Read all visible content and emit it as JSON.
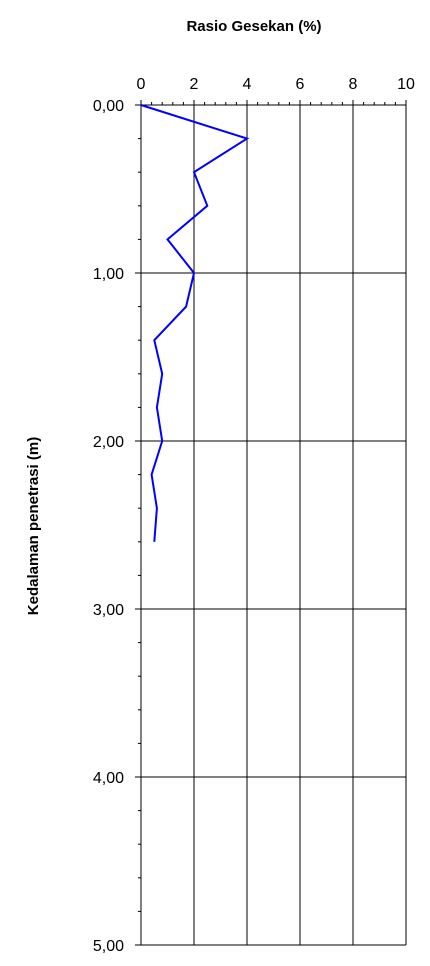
{
  "chart_data": {
    "type": "line",
    "title": "Rasio Gesekan (%)",
    "xlabel": "",
    "ylabel": "Kedalaman penetrasi (m)",
    "xlim": [
      0,
      10
    ],
    "ylim": [
      0,
      5
    ],
    "y_inverted": true,
    "x_axis_position": "top",
    "grid": true,
    "legend": "none",
    "x_ticks": [
      "0",
      "2",
      "4",
      "6",
      "8",
      "10"
    ],
    "y_ticks": [
      "0,00",
      "1,00",
      "2,00",
      "3,00",
      "4,00",
      "5,00"
    ],
    "series": [
      {
        "color": "#0000ff",
        "points": [
          {
            "x": 0.0,
            "y": 0.0
          },
          {
            "x": 4.0,
            "y": 0.2
          },
          {
            "x": 2.0,
            "y": 0.4
          },
          {
            "x": 2.5,
            "y": 0.6
          },
          {
            "x": 1.0,
            "y": 0.8
          },
          {
            "x": 2.0,
            "y": 1.0
          },
          {
            "x": 1.7,
            "y": 1.2
          },
          {
            "x": 0.5,
            "y": 1.4
          },
          {
            "x": 0.8,
            "y": 1.6
          },
          {
            "x": 0.6,
            "y": 1.8
          },
          {
            "x": 0.8,
            "y": 2.0
          },
          {
            "x": 0.4,
            "y": 2.2
          },
          {
            "x": 0.6,
            "y": 2.4
          },
          {
            "x": 0.5,
            "y": 2.6
          }
        ]
      }
    ]
  }
}
